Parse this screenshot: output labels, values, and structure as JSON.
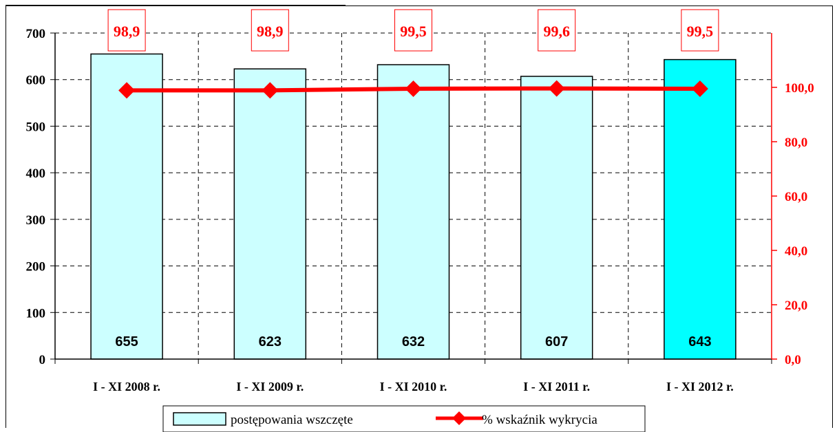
{
  "chart_data": {
    "type": "bar",
    "categories": [
      "I - XI 2008 r.",
      "I - XI 2009 r.",
      "I - XI 2010 r.",
      "I - XI 2011 r.",
      "I - XI 2012 r."
    ],
    "series": [
      {
        "name": "postępowania wszczęte",
        "type": "bar",
        "axis": "left",
        "values": [
          655,
          623,
          632,
          607,
          643
        ],
        "value_labels": [
          "655",
          "623",
          "632",
          "607",
          "643"
        ],
        "colors": [
          "#ccffff",
          "#ccffff",
          "#ccffff",
          "#ccffff",
          "#00ffff"
        ]
      },
      {
        "name": "% wskaźnik wykrycia",
        "type": "line",
        "axis": "right",
        "values": [
          98.9,
          98.9,
          99.5,
          99.6,
          99.5
        ],
        "value_labels": [
          "98,9",
          "98,9",
          "99,5",
          "99,6",
          "99,5"
        ],
        "color": "#ff0000"
      }
    ],
    "y_left": {
      "min": 0,
      "max": 700,
      "ticks": [
        "0",
        "100",
        "200",
        "300",
        "400",
        "500",
        "600",
        "700"
      ]
    },
    "y_right": {
      "min": 0,
      "max": 120,
      "ticks": [
        "0,0",
        "20,0",
        "40,0",
        "60,0",
        "80,0",
        "100,0"
      ]
    },
    "grid": true,
    "legend_position": "bottom"
  }
}
